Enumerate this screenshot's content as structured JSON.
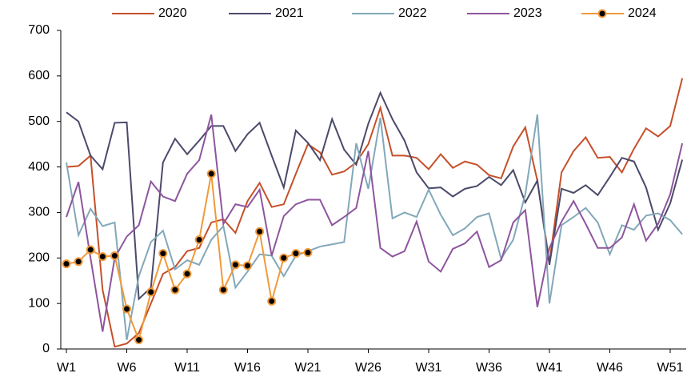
{
  "chart_data": {
    "type": "line",
    "categories": [
      "W1",
      null,
      null,
      null,
      null,
      "W6",
      null,
      null,
      null,
      null,
      "W11",
      null,
      null,
      null,
      null,
      "W16",
      null,
      null,
      null,
      null,
      "W21",
      null,
      null,
      null,
      null,
      "W26",
      null,
      null,
      null,
      null,
      "W31",
      null,
      null,
      null,
      null,
      "W36",
      null,
      null,
      null,
      null,
      "W41",
      null,
      null,
      null,
      null,
      "W46",
      null,
      null,
      null,
      null,
      "W51",
      null
    ],
    "ylim": [
      0,
      700
    ],
    "yticks": [
      0,
      100,
      200,
      300,
      400,
      500,
      600,
      700
    ],
    "grid": false,
    "legend": "top",
    "series": [
      {
        "name": "2020",
        "color": "#c5502a",
        "marker": false,
        "values": [
          400,
          402,
          425,
          130,
          5,
          12,
          35,
          100,
          165,
          180,
          215,
          222,
          278,
          285,
          255,
          325,
          365,
          312,
          318,
          385,
          450,
          432,
          383,
          390,
          410,
          450,
          530,
          425,
          425,
          420,
          395,
          428,
          398,
          412,
          405,
          382,
          375,
          445,
          487,
          370,
          190,
          388,
          435,
          465,
          420,
          422,
          388,
          440,
          485,
          467,
          490,
          595
        ]
      },
      {
        "name": "2021",
        "color": "#4b4a6b",
        "marker": false,
        "values": [
          520,
          500,
          425,
          395,
          497,
          498,
          110,
          135,
          410,
          462,
          428,
          458,
          490,
          490,
          435,
          472,
          497,
          425,
          355,
          480,
          453,
          415,
          505,
          438,
          405,
          495,
          563,
          505,
          458,
          388,
          353,
          355,
          335,
          352,
          358,
          378,
          360,
          393,
          322,
          370,
          185,
          352,
          343,
          360,
          338,
          378,
          420,
          412,
          355,
          262,
          320,
          416
        ]
      },
      {
        "name": "2022",
        "color": "#82a8b9",
        "marker": false,
        "values": [
          410,
          250,
          308,
          270,
          278,
          20,
          160,
          235,
          260,
          175,
          195,
          185,
          240,
          270,
          135,
          170,
          208,
          205,
          160,
          205,
          215,
          225,
          230,
          235,
          452,
          352,
          508,
          287,
          300,
          290,
          350,
          295,
          250,
          265,
          290,
          298,
          198,
          240,
          340,
          515,
          100,
          272,
          290,
          310,
          278,
          208,
          272,
          262,
          293,
          298,
          283,
          252
        ]
      },
      {
        "name": "2023",
        "color": "#8e559e",
        "marker": false,
        "values": [
          290,
          367,
          200,
          38,
          200,
          247,
          272,
          368,
          335,
          325,
          385,
          415,
          515,
          275,
          318,
          312,
          350,
          205,
          292,
          318,
          328,
          328,
          272,
          290,
          310,
          435,
          222,
          203,
          215,
          280,
          192,
          170,
          220,
          232,
          258,
          180,
          195,
          278,
          305,
          92,
          222,
          280,
          325,
          275,
          222,
          222,
          245,
          318,
          238,
          275,
          340,
          452
        ]
      },
      {
        "name": "2024",
        "color": "#f09a3a",
        "marker": true,
        "values": [
          187,
          192,
          218,
          203,
          205,
          88,
          20,
          125,
          210,
          130,
          165,
          240,
          385,
          130,
          185,
          183,
          258,
          105,
          200,
          210,
          212,
          null,
          null,
          null,
          null,
          null,
          null,
          null,
          null,
          null,
          null,
          null,
          null,
          null,
          null,
          null,
          null,
          null,
          null,
          null,
          null,
          null,
          null,
          null,
          null,
          null,
          null,
          null,
          null,
          null,
          null,
          null
        ]
      }
    ]
  }
}
